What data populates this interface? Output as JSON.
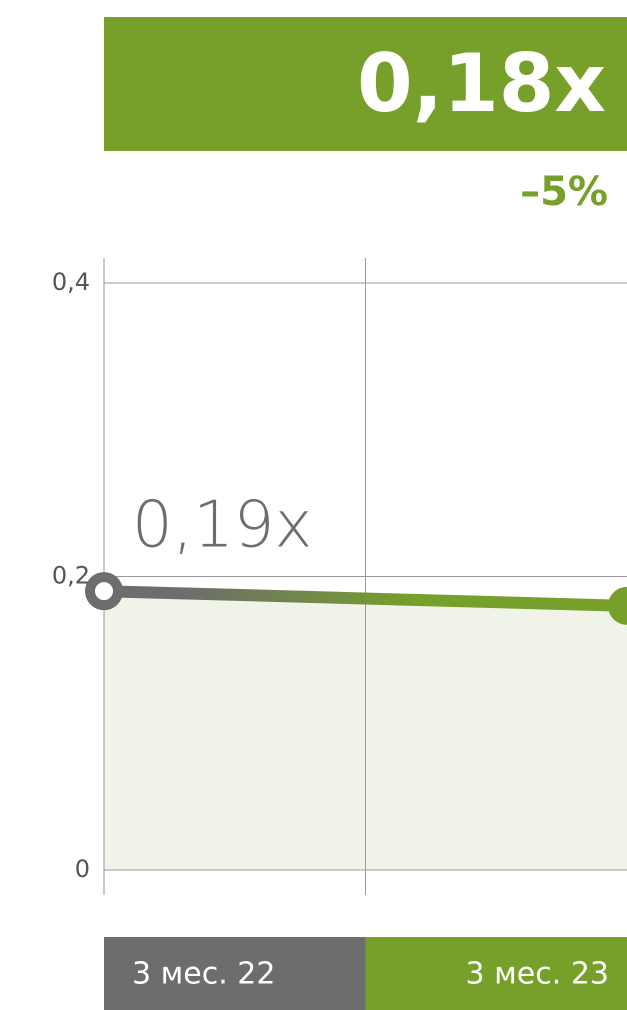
{
  "chart_data": {
    "type": "line",
    "categories": [
      "3 мес. 22",
      "3 мес. 23"
    ],
    "values": [
      0.19,
      0.18
    ],
    "value_labels": [
      "0,19x",
      "0,18x"
    ],
    "change": "–5%",
    "colors": [
      "#6d6d6d",
      "#76a02a"
    ],
    "ylim": [
      0,
      0.4
    ],
    "yticks": [
      0,
      {
        "value": 0.2,
        "label": "0,2"
      },
      {
        "value": 0.4,
        "label": "0,4"
      }
    ],
    "grid": true
  }
}
